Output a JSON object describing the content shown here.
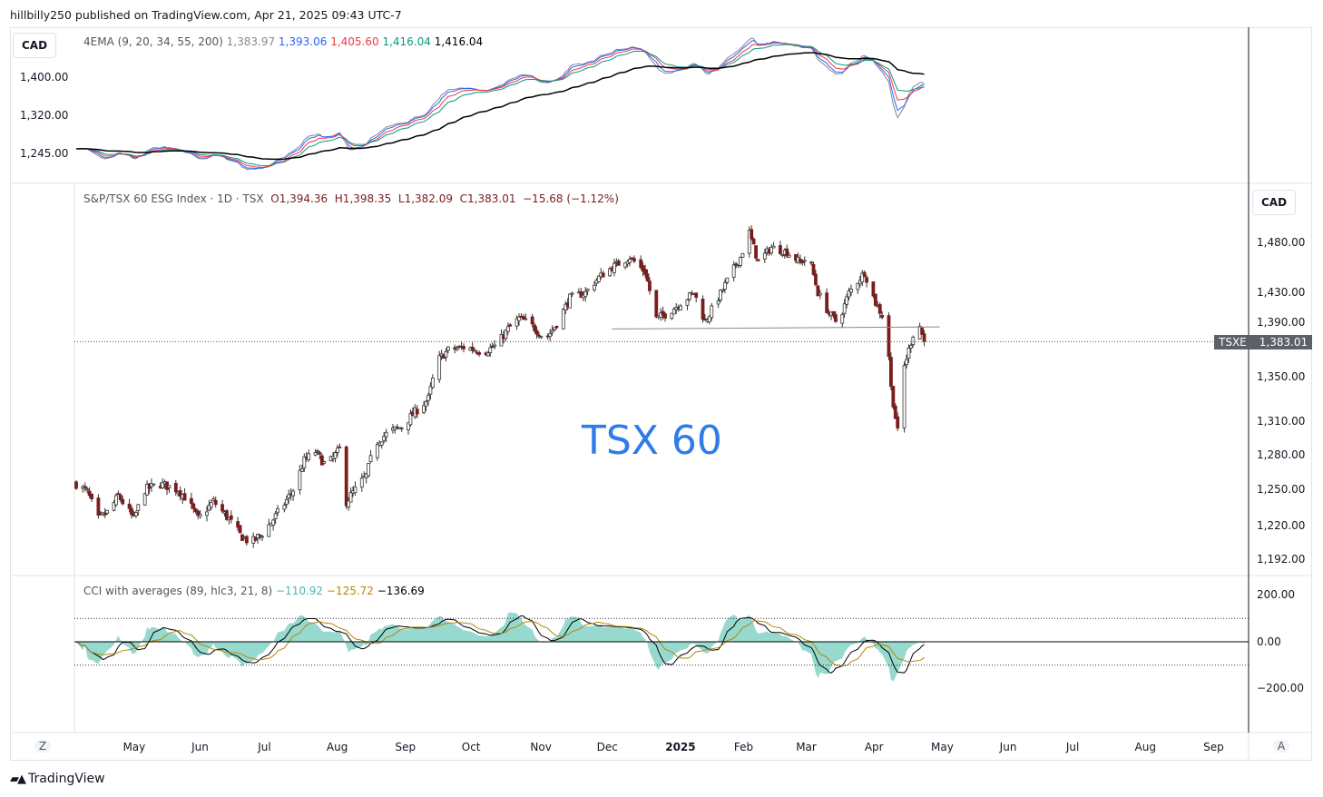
{
  "header": "hillbilly250 published on TradingView.com, Apr 21, 2025 09:43 UTC-7",
  "currency_top": "CAD",
  "currency_main": "CAD",
  "ema_legend": {
    "name": "4EMA (9, 20, 34, 55, 200)",
    "v1": "1,383.97",
    "v2": "1,393.06",
    "v3": "1,405.60",
    "v4": "1,416.04",
    "v5": "1,416.04"
  },
  "ema_axis": [
    "1,400.00",
    "1,320.00",
    "1,245.00"
  ],
  "main_legend": {
    "name": "S&P/TSX 60 ESG Index · 1D · TSX",
    "o": "O1,394.36",
    "h": "H1,398.35",
    "l": "L1,382.09",
    "c": "C1,383.01",
    "chg": "−15.68 (−1.12%)"
  },
  "price_axis": [
    "1,480.00",
    "1,430.00",
    "1,390.00",
    "1,350.00",
    "1,310.00",
    "1,280.00",
    "1,250.00",
    "1,220.00",
    "1,192.00"
  ],
  "last_price": {
    "symbol": "TSXE",
    "value": "1,383.01"
  },
  "annotation": "TSX 60",
  "cci_legend": {
    "name": "CCI with averages (89, hlc3, 21, 8)",
    "v1": "−110.92",
    "v2": "−125.72",
    "v3": "−136.69"
  },
  "cci_axis": [
    "200.00",
    "0.00",
    "−200.00"
  ],
  "time_axis": [
    {
      "label": "May",
      "day": 26
    },
    {
      "label": "Jun",
      "day": 57
    },
    {
      "label": "Jul",
      "day": 87
    },
    {
      "label": "Aug",
      "day": 118
    },
    {
      "label": "Sep",
      "day": 149
    },
    {
      "label": "Oct",
      "day": 179
    },
    {
      "label": "Nov",
      "day": 210
    },
    {
      "label": "Dec",
      "day": 240
    },
    {
      "label": "2025",
      "day": 271
    },
    {
      "label": "Feb",
      "day": 302
    },
    {
      "label": "Mar",
      "day": 330
    },
    {
      "label": "Apr",
      "day": 361
    },
    {
      "label": "May",
      "day": 391
    },
    {
      "label": "Jun",
      "day": 422
    },
    {
      "label": "Jul",
      "day": 452
    },
    {
      "label": "Aug",
      "day": 483
    },
    {
      "label": "Sep",
      "day": 514
    }
  ],
  "axis_buttons": {
    "left": "Z",
    "right": "A"
  },
  "footer": "TradingView",
  "colors": {
    "up": "#ffffff",
    "down": "#7a1d1d",
    "ema1": "#888888",
    "ema2": "#2962ff",
    "ema3": "#f23645",
    "ema4": "#089981",
    "ema5": "#000000",
    "cci_fill": "#7ccfc2",
    "cci_avg1": "#000000",
    "cci_avg2": "#b8860b",
    "annotation": "#2f7be8"
  },
  "chart_data": {
    "type": "candlestick",
    "title": "S&P/TSX 60 ESG Index",
    "x_unit": "days since 2024-04-05",
    "yscale": "log",
    "ylim": [
      1192,
      1500
    ],
    "close_path": [
      [
        0,
        1255
      ],
      [
        5,
        1248
      ],
      [
        10,
        1225
      ],
      [
        15,
        1232
      ],
      [
        19,
        1245
      ],
      [
        26,
        1225
      ],
      [
        31,
        1250
      ],
      [
        38,
        1255
      ],
      [
        46,
        1250
      ],
      [
        50,
        1242
      ],
      [
        55,
        1225
      ],
      [
        62,
        1240
      ],
      [
        69,
        1225
      ],
      [
        74,
        1212
      ],
      [
        79,
        1205
      ],
      [
        85,
        1215
      ],
      [
        89,
        1225
      ],
      [
        93,
        1235
      ],
      [
        98,
        1250
      ],
      [
        103,
        1275
      ],
      [
        108,
        1283
      ],
      [
        113,
        1270
      ],
      [
        119,
        1285
      ],
      [
        122,
        1240
      ],
      [
        126,
        1250
      ],
      [
        131,
        1262
      ],
      [
        135,
        1290
      ],
      [
        141,
        1300
      ],
      [
        147,
        1305
      ],
      [
        153,
        1318
      ],
      [
        159,
        1330
      ],
      [
        163,
        1365
      ],
      [
        168,
        1375
      ],
      [
        176,
        1378
      ],
      [
        184,
        1373
      ],
      [
        190,
        1380
      ],
      [
        195,
        1395
      ],
      [
        200,
        1405
      ],
      [
        205,
        1400
      ],
      [
        212,
        1385
      ],
      [
        217,
        1400
      ],
      [
        223,
        1425
      ],
      [
        230,
        1430
      ],
      [
        236,
        1445
      ],
      [
        242,
        1455
      ],
      [
        250,
        1465
      ],
      [
        257,
        1450
      ],
      [
        262,
        1405
      ],
      [
        267,
        1410
      ],
      [
        273,
        1420
      ],
      [
        279,
        1430
      ],
      [
        284,
        1402
      ],
      [
        290,
        1425
      ],
      [
        296,
        1450
      ],
      [
        300,
        1465
      ],
      [
        304,
        1490
      ],
      [
        308,
        1460
      ],
      [
        314,
        1475
      ],
      [
        321,
        1470
      ],
      [
        327,
        1460
      ],
      [
        331,
        1465
      ],
      [
        335,
        1430
      ],
      [
        340,
        1410
      ],
      [
        344,
        1400
      ],
      [
        349,
        1430
      ],
      [
        356,
        1450
      ],
      [
        361,
        1420
      ],
      [
        366,
        1400
      ],
      [
        368,
        1340
      ],
      [
        371,
        1300
      ],
      [
        374,
        1360
      ],
      [
        378,
        1390
      ],
      [
        381,
        1398
      ],
      [
        383,
        1383
      ]
    ],
    "neckline": [
      [
        242,
        1395
      ],
      [
        390,
        1397
      ]
    ],
    "last_close": 1383.01
  }
}
